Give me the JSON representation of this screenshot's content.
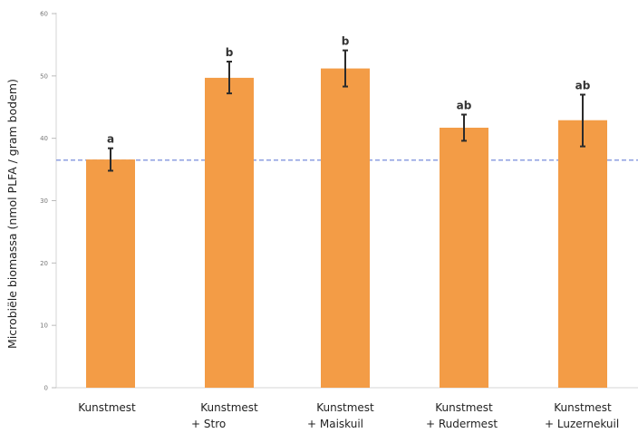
{
  "chart_data": {
    "type": "bar",
    "ylabel": "Microbiële biomassa (nmol PLFA / gram bodem)",
    "ylim": [
      0,
      60
    ],
    "yticks": [
      0,
      10,
      20,
      30,
      40,
      50,
      60
    ],
    "grid": false,
    "reference_line": 36.5,
    "bar_color": "#f39c46",
    "reference_line_color": "#8d9fe0",
    "categories": [
      {
        "line1": "Kunstmest",
        "line2": ""
      },
      {
        "line1": "Kunstmest",
        "line2": "+ Stro"
      },
      {
        "line1": "Kunstmest",
        "line2": "+ Maiskuil"
      },
      {
        "line1": "Kunstmest",
        "line2": "+ Rudermest"
      },
      {
        "line1": "Kunstmest",
        "line2": "+ Luzernekuil"
      }
    ],
    "values": [
      36.6,
      49.7,
      51.2,
      41.7,
      42.9
    ],
    "error_low": [
      34.8,
      47.2,
      48.3,
      39.6,
      38.7
    ],
    "error_high": [
      38.4,
      52.3,
      54.1,
      43.8,
      47.0
    ],
    "significance": [
      "a",
      "b",
      "b",
      "ab",
      "ab"
    ]
  }
}
